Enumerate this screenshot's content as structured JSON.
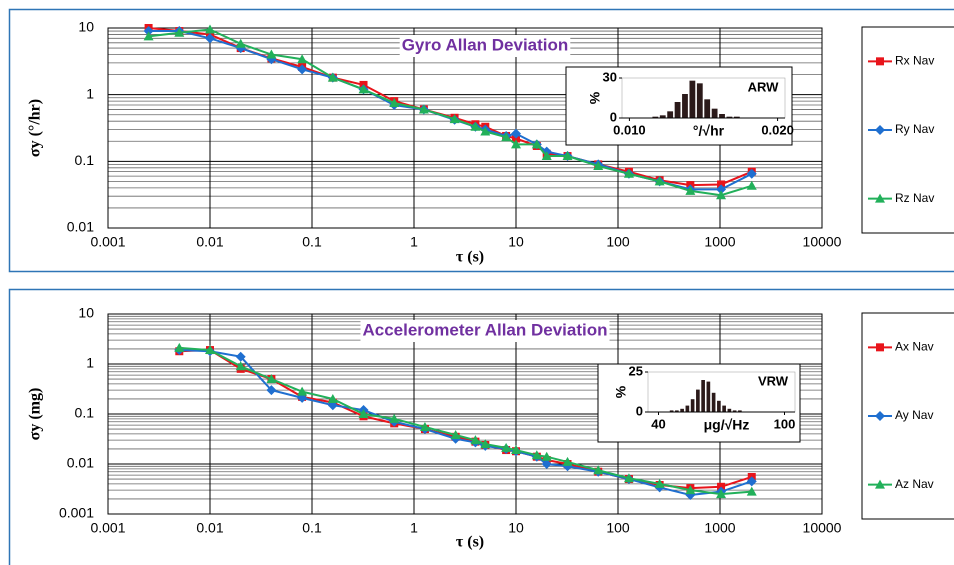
{
  "chart_data": [
    {
      "type": "line",
      "title": "Gyro Allan Deviation",
      "x_label": "τ (s)",
      "y_label": "σy (°/hr)",
      "log_x": true,
      "log_y": true,
      "grid": true,
      "legend": "right",
      "xlim": [
        0.001,
        10000
      ],
      "xticks": [
        0.001,
        0.01,
        0.1,
        1,
        10,
        100,
        1000,
        10000
      ],
      "ylim": [
        0.01,
        10
      ],
      "yticks": [
        0.01,
        0.1,
        1,
        10
      ],
      "x": [
        0.0025,
        0.005,
        0.01,
        0.02,
        0.04,
        0.08,
        0.16,
        0.32,
        0.64,
        1.25,
        2.5,
        4,
        5,
        8,
        10,
        16,
        20,
        32,
        64,
        128,
        256,
        512,
        1024,
        2048
      ],
      "series": [
        {
          "name": "Rx Nav",
          "color": "#e8141b",
          "marker": "square",
          "values": [
            10,
            9,
            8,
            5,
            3.5,
            2.6,
            1.8,
            1.4,
            0.8,
            0.6,
            0.45,
            0.36,
            0.33,
            0.24,
            0.22,
            0.17,
            0.13,
            0.12,
            0.09,
            0.07,
            0.052,
            0.044,
            0.045,
            0.07
          ]
        },
        {
          "name": "Ry Nav",
          "color": "#1f6fd0",
          "marker": "diamond",
          "values": [
            9,
            9,
            7,
            5,
            3.4,
            2.4,
            1.8,
            1.2,
            0.7,
            0.6,
            0.42,
            0.33,
            0.3,
            0.24,
            0.26,
            0.18,
            0.14,
            0.12,
            0.09,
            0.065,
            0.05,
            0.038,
            0.038,
            0.065
          ]
        },
        {
          "name": "Rz Nav",
          "color": "#22b05a",
          "marker": "triangle",
          "values": [
            7.5,
            8.5,
            9.5,
            5.8,
            4,
            3.4,
            1.8,
            1.2,
            0.75,
            0.6,
            0.43,
            0.33,
            0.28,
            0.23,
            0.18,
            0.18,
            0.12,
            0.12,
            0.085,
            0.065,
            0.05,
            0.036,
            0.031,
            0.043
          ]
        }
      ]
    },
    {
      "type": "line",
      "title": "Accelerometer Allan Deviation",
      "x_label": "τ (s)",
      "y_label": "σy (mg)",
      "log_x": true,
      "log_y": true,
      "grid": true,
      "legend": "right",
      "xlim": [
        0.001,
        10000
      ],
      "xticks": [
        0.001,
        0.01,
        0.1,
        1,
        10,
        100,
        1000,
        10000
      ],
      "ylim": [
        0.001,
        10
      ],
      "yticks": [
        0.001,
        0.01,
        0.1,
        1,
        10
      ],
      "x": [
        0.005,
        0.01,
        0.02,
        0.04,
        0.08,
        0.16,
        0.32,
        0.64,
        1.28,
        2.56,
        4,
        5,
        8,
        10,
        16,
        20,
        32,
        64,
        128,
        256,
        512,
        1024,
        2048
      ],
      "series": [
        {
          "name": "Ax Nav",
          "color": "#e8141b",
          "marker": "square",
          "values": [
            1.8,
            1.9,
            0.8,
            0.5,
            0.22,
            0.17,
            0.09,
            0.065,
            0.05,
            0.035,
            0.028,
            0.024,
            0.019,
            0.018,
            0.014,
            0.012,
            0.01,
            0.007,
            0.005,
            0.0038,
            0.0033,
            0.0035,
            0.0055
          ]
        },
        {
          "name": "Ay Nav",
          "color": "#1f6fd0",
          "marker": "diamond",
          "values": [
            1.9,
            1.8,
            1.4,
            0.3,
            0.21,
            0.15,
            0.12,
            0.07,
            0.05,
            0.032,
            0.027,
            0.023,
            0.02,
            0.018,
            0.014,
            0.01,
            0.009,
            0.007,
            0.005,
            0.0034,
            0.0024,
            0.0028,
            0.0045
          ]
        },
        {
          "name": "Az Nav",
          "color": "#22b05a",
          "marker": "triangle",
          "values": [
            2.1,
            1.9,
            0.9,
            0.5,
            0.28,
            0.2,
            0.1,
            0.08,
            0.055,
            0.038,
            0.03,
            0.025,
            0.021,
            0.019,
            0.015,
            0.014,
            0.011,
            0.0075,
            0.0052,
            0.004,
            0.003,
            0.0025,
            0.0028
          ]
        }
      ]
    },
    {
      "type": "histogram",
      "title": "ARW",
      "x_label": "°/√hr",
      "y_label": "%",
      "color": "#2b1a1a",
      "xlim": [
        0.0095,
        0.0205
      ],
      "xticks": [
        {
          "value": 0.01,
          "label": "0.010"
        },
        {
          "value": 0.02,
          "label": "0.020"
        }
      ],
      "ylim": [
        0,
        30
      ],
      "yticks": [
        0,
        30
      ],
      "bins": [
        0.01,
        0.0105,
        0.011,
        0.0115,
        0.012,
        0.0125,
        0.013,
        0.0135,
        0.014,
        0.0145,
        0.015,
        0.0155,
        0.016,
        0.0165,
        0.017,
        0.0175,
        0.018,
        0.0185,
        0.019,
        0.0195,
        0.02
      ],
      "values": [
        0,
        0,
        0,
        1,
        2,
        5,
        12,
        18,
        28,
        26,
        14,
        7,
        3,
        1,
        1,
        0,
        0,
        0,
        0,
        0
      ]
    },
    {
      "type": "histogram",
      "title": "VRW",
      "x_label": "μg/√Hz",
      "y_label": "%",
      "color": "#2b1a1a",
      "xlim": [
        35,
        105
      ],
      "xticks": [
        40,
        100
      ],
      "ylim": [
        0,
        25
      ],
      "yticks": [
        0,
        25
      ],
      "bins": [
        40,
        42.5,
        45,
        47.5,
        50,
        52.5,
        55,
        57.5,
        60,
        62.5,
        65,
        67.5,
        70,
        72.5,
        75,
        77.5,
        80,
        82.5,
        85,
        87.5,
        90,
        92.5,
        95,
        97.5,
        100
      ],
      "values": [
        0,
        0,
        1,
        1,
        2,
        4,
        8,
        14,
        20,
        19,
        12,
        7,
        4,
        2,
        1,
        1,
        0,
        0,
        0,
        0,
        0,
        0,
        0,
        0
      ]
    }
  ]
}
